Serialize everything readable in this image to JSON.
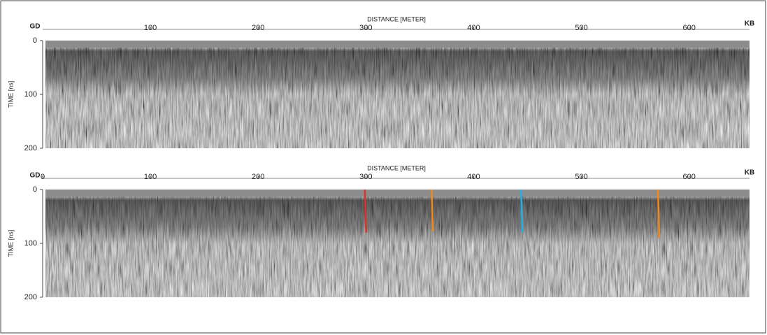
{
  "chart_data": [
    {
      "type": "radargram",
      "left_label": "GD",
      "right_label": "KB",
      "xlabel": "DISTANCE [METER]",
      "ylabel": "TIME [ns]",
      "xlim": [
        0,
        656
      ],
      "xticks": [
        100,
        200,
        300,
        400,
        500,
        600
      ],
      "ylim": [
        0,
        200
      ],
      "yticks": [
        0,
        100,
        200
      ],
      "series": []
    },
    {
      "type": "radargram",
      "left_label": "GD",
      "right_label": "KB",
      "xlabel": "DISTANCE [METER]",
      "ylabel": "TIME [ns]",
      "xlim": [
        0,
        656
      ],
      "xticks": [
        0,
        100,
        200,
        300,
        400,
        500,
        600
      ],
      "ylim": [
        0,
        200
      ],
      "yticks": [
        0,
        100,
        200
      ],
      "series": [
        {
          "color": "#e0302a",
          "x": 299,
          "values": [
            0,
            80
          ]
        },
        {
          "color": "#f08a1c",
          "x": 361,
          "values": [
            0,
            78
          ]
        },
        {
          "color": "#22b0e0",
          "x": 444,
          "values": [
            0,
            80
          ]
        },
        {
          "color": "#f08a1c",
          "x": 571,
          "values": [
            0,
            90
          ]
        }
      ]
    }
  ]
}
